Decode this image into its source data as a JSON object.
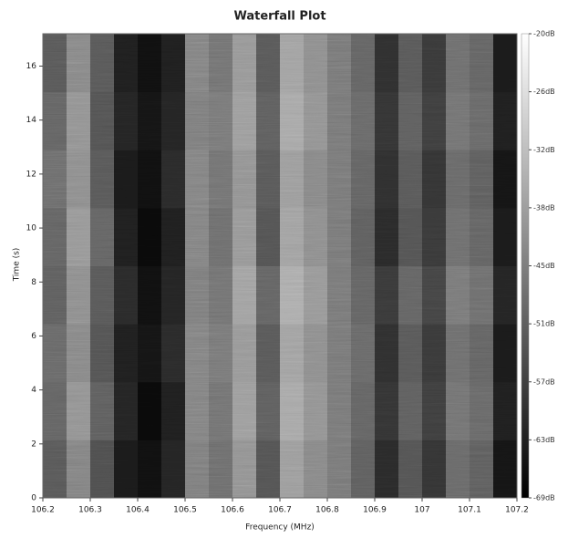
{
  "chart_data": {
    "type": "heatmap",
    "title": "Waterfall Plot",
    "x_label": "Frequency (MHz)",
    "y_label": "Time (s)",
    "x": [
      106.2,
      106.25,
      106.3,
      106.35,
      106.4,
      106.45,
      106.5,
      106.55,
      106.6,
      106.65,
      106.7,
      106.75,
      106.8,
      106.85,
      106.9,
      106.95,
      107.0,
      107.05,
      107.1,
      107.15,
      107.2
    ],
    "y": [
      0,
      2.15,
      4.3,
      6.45,
      8.6,
      10.75,
      12.9,
      15.05,
      17.2
    ],
    "values": [
      [
        -52,
        -44,
        -54,
        -64,
        -66,
        -62,
        -45,
        -48,
        -41,
        -53,
        -39,
        -43,
        -46,
        -51,
        -61,
        -53,
        -59,
        -49,
        -51,
        -65
      ],
      [
        -50,
        -41,
        -51,
        -62,
        -67,
        -63,
        -44,
        -47,
        -39,
        -51,
        -37,
        -41,
        -46,
        -50,
        -59,
        -51,
        -57,
        -47,
        -49,
        -63
      ],
      [
        -49,
        -43,
        -53,
        -63,
        -65,
        -61,
        -44,
        -46,
        -40,
        -52,
        -38,
        -42,
        -46,
        -49,
        -60,
        -52,
        -58,
        -48,
        -50,
        -64
      ],
      [
        -51,
        -42,
        -52,
        -61,
        -66,
        -62,
        -45,
        -47,
        -38,
        -50,
        -36,
        -40,
        -46,
        -50,
        -58,
        -50,
        -56,
        -46,
        -48,
        -62
      ],
      [
        -50,
        -40,
        -50,
        -63,
        -67,
        -63,
        -44,
        -48,
        -40,
        -53,
        -38,
        -42,
        -46,
        -51,
        -61,
        -53,
        -58,
        -48,
        -50,
        -64
      ],
      [
        -48,
        -42,
        -52,
        -64,
        -66,
        -61,
        -44,
        -47,
        -41,
        -52,
        -39,
        -43,
        -46,
        -50,
        -60,
        -52,
        -59,
        -49,
        -51,
        -65
      ],
      [
        -50,
        -41,
        -53,
        -62,
        -65,
        -62,
        -45,
        -46,
        -39,
        -51,
        -37,
        -41,
        -46,
        -49,
        -59,
        -51,
        -57,
        -47,
        -49,
        -63
      ],
      [
        -52,
        -43,
        -52,
        -63,
        -66,
        -63,
        -44,
        -47,
        -40,
        -52,
        -38,
        -42,
        -46,
        -50,
        -60,
        -52,
        -58,
        -48,
        -50,
        -64
      ]
    ],
    "xlim": [
      106.2,
      107.2
    ],
    "xticks": [
      106.2,
      106.3,
      106.4,
      106.5,
      106.6,
      106.7,
      106.8,
      106.9,
      107,
      107.1,
      107.2
    ],
    "ylim": [
      0,
      17.2
    ],
    "yticks": [
      0,
      2,
      4,
      6,
      8,
      10,
      12,
      14,
      16
    ],
    "clim": [
      -69,
      -20
    ],
    "cticks": [
      {
        "value": -20,
        "label": "-20dB"
      },
      {
        "value": -26.125,
        "label": "-26dB"
      },
      {
        "value": -32.25,
        "label": "-32dB"
      },
      {
        "value": -38.375,
        "label": "-38dB"
      },
      {
        "value": -44.5,
        "label": "-45dB"
      },
      {
        "value": -50.625,
        "label": "-51dB"
      },
      {
        "value": -56.75,
        "label": "-57dB"
      },
      {
        "value": -62.875,
        "label": "-63dB"
      },
      {
        "value": -69,
        "label": "-69dB"
      }
    ],
    "colormap": [
      "#000000",
      "#ffffff"
    ]
  }
}
